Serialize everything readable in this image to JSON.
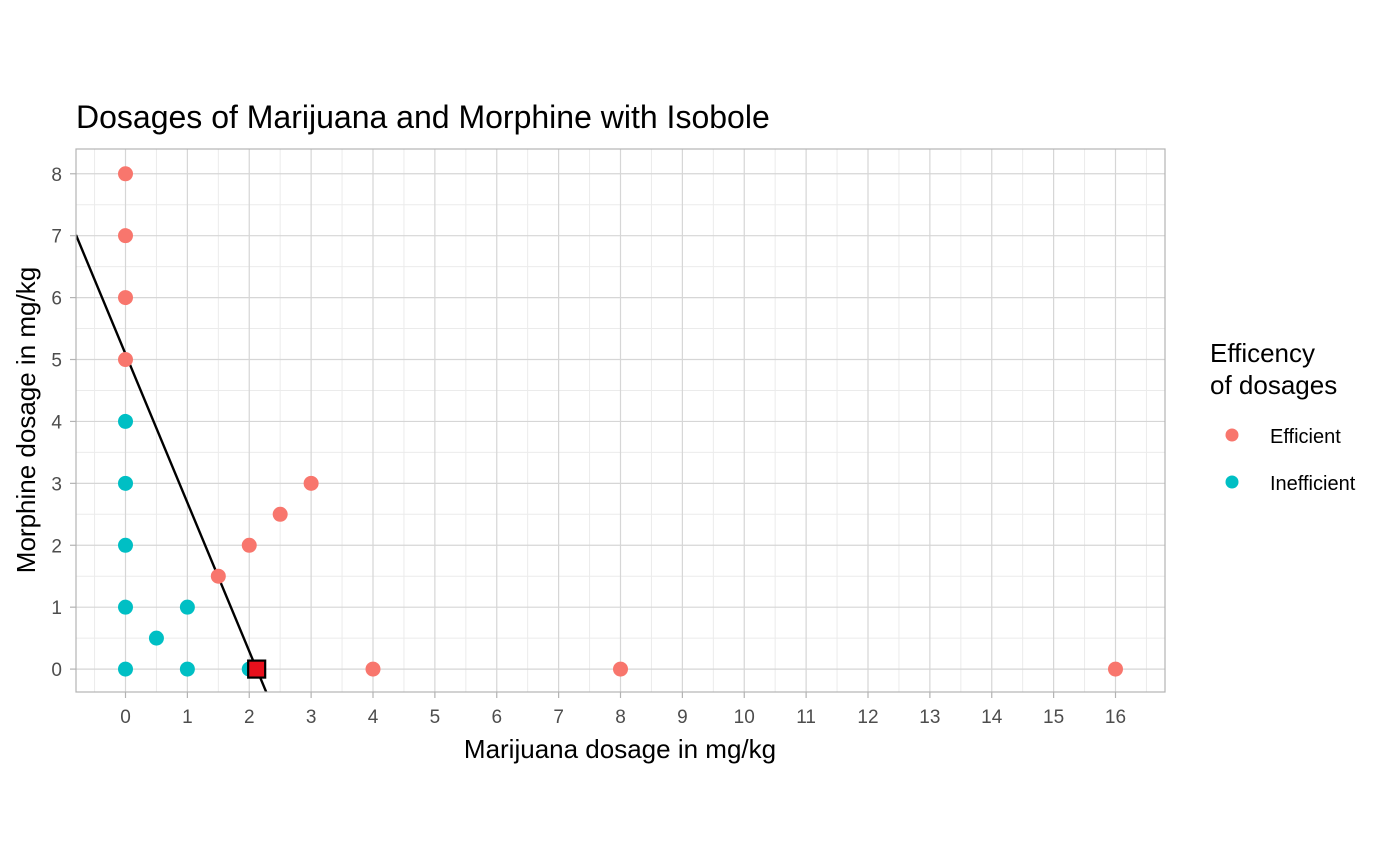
{
  "chart_data": {
    "type": "scatter",
    "title": "Dosages of Marijuana and Morphine with Isobole",
    "xlabel": "Marijuana dosage in mg/kg",
    "ylabel": "Morphine dosage in mg/kg",
    "xlim": [
      -0.8,
      16.8
    ],
    "ylim": [
      -0.37,
      8.4
    ],
    "x_ticks": [
      "0",
      "1",
      "2",
      "3",
      "4",
      "5",
      "6",
      "7",
      "8",
      "9",
      "10",
      "11",
      "12",
      "13",
      "14",
      "15",
      "16"
    ],
    "y_ticks": [
      "0",
      "1",
      "2",
      "3",
      "4",
      "5",
      "6",
      "7",
      "8"
    ],
    "grid": true,
    "legend": {
      "title_lines": [
        "Efficency",
        "of dosages"
      ],
      "position": "right",
      "entries": [
        {
          "label": "Efficient",
          "color": "#F8766D"
        },
        {
          "label": "Inefficient",
          "color": "#00BFC4"
        }
      ]
    },
    "series": [
      {
        "name": "Efficient",
        "color": "#F8766D",
        "points": [
          {
            "x": 0,
            "y": 8
          },
          {
            "x": 0,
            "y": 7
          },
          {
            "x": 0,
            "y": 6
          },
          {
            "x": 0,
            "y": 5
          },
          {
            "x": 1.5,
            "y": 1.5
          },
          {
            "x": 2,
            "y": 2
          },
          {
            "x": 2.5,
            "y": 2.5
          },
          {
            "x": 3,
            "y": 3
          },
          {
            "x": 4,
            "y": 0
          },
          {
            "x": 8,
            "y": 0
          },
          {
            "x": 16,
            "y": 0
          }
        ]
      },
      {
        "name": "Inefficient",
        "color": "#00BFC4",
        "points": [
          {
            "x": 0,
            "y": 4
          },
          {
            "x": 0,
            "y": 3
          },
          {
            "x": 0,
            "y": 2
          },
          {
            "x": 0,
            "y": 1
          },
          {
            "x": 0,
            "y": 0
          },
          {
            "x": 0.5,
            "y": 0.5
          },
          {
            "x": 1,
            "y": 1
          },
          {
            "x": 1,
            "y": 0
          },
          {
            "x": 2,
            "y": 0
          }
        ]
      }
    ],
    "isobole": {
      "color": "#000000",
      "points": [
        {
          "x": 0,
          "y": 5.09
        },
        {
          "x": 2.12,
          "y": 0
        }
      ]
    },
    "marker": {
      "shape": "square",
      "x": 2.12,
      "y": 0,
      "fill": "#E8101C",
      "stroke": "#000000"
    }
  }
}
